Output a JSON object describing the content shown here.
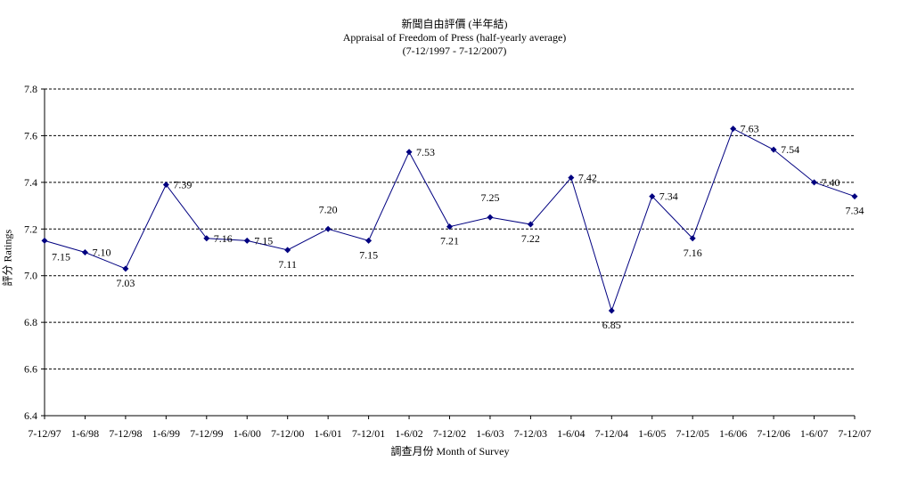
{
  "chart_data": {
    "type": "line",
    "title": "新聞自由評價 (半年結)",
    "subtitle": "Appraisal of Freedom of Press (half-yearly average)",
    "subtitle2": "(7-12/1997 - 7-12/2007)",
    "xlabel": "調查月份 Month of Survey",
    "ylabel": "評分 Ratings",
    "ylim": [
      6.4,
      7.8
    ],
    "yticks": [
      "6.4",
      "6.6",
      "6.8",
      "7.0",
      "7.2",
      "7.4",
      "7.6",
      "7.8"
    ],
    "grid": true,
    "categories": [
      "7-12/97",
      "1-6/98",
      "7-12/98",
      "1-6/99",
      "7-12/99",
      "1-6/00",
      "7-12/00",
      "1-6/01",
      "7-12/01",
      "1-6/02",
      "7-12/02",
      "1-6/03",
      "7-12/03",
      "1-6/04",
      "7-12/04",
      "1-6/05",
      "7-12/05",
      "1-6/06",
      "7-12/06",
      "1-6/07",
      "7-12/07"
    ],
    "series": [
      {
        "values": [
          7.15,
          7.1,
          7.03,
          7.39,
          7.16,
          7.15,
          7.11,
          7.2,
          7.15,
          7.53,
          7.21,
          7.25,
          7.22,
          7.42,
          6.85,
          7.34,
          7.16,
          7.63,
          7.54,
          7.4,
          7.34
        ],
        "labels": [
          "7.15",
          "7.10",
          "7.03",
          "7.39",
          "7.16",
          "7.15",
          "7.11",
          "7.20",
          "7.15",
          "7.53",
          "7.21",
          "7.25",
          "7.22",
          "7.42",
          "6.85",
          "7.34",
          "7.16",
          "7.63",
          "7.54",
          "7.40",
          "7.34"
        ],
        "color": "#000080"
      }
    ]
  }
}
